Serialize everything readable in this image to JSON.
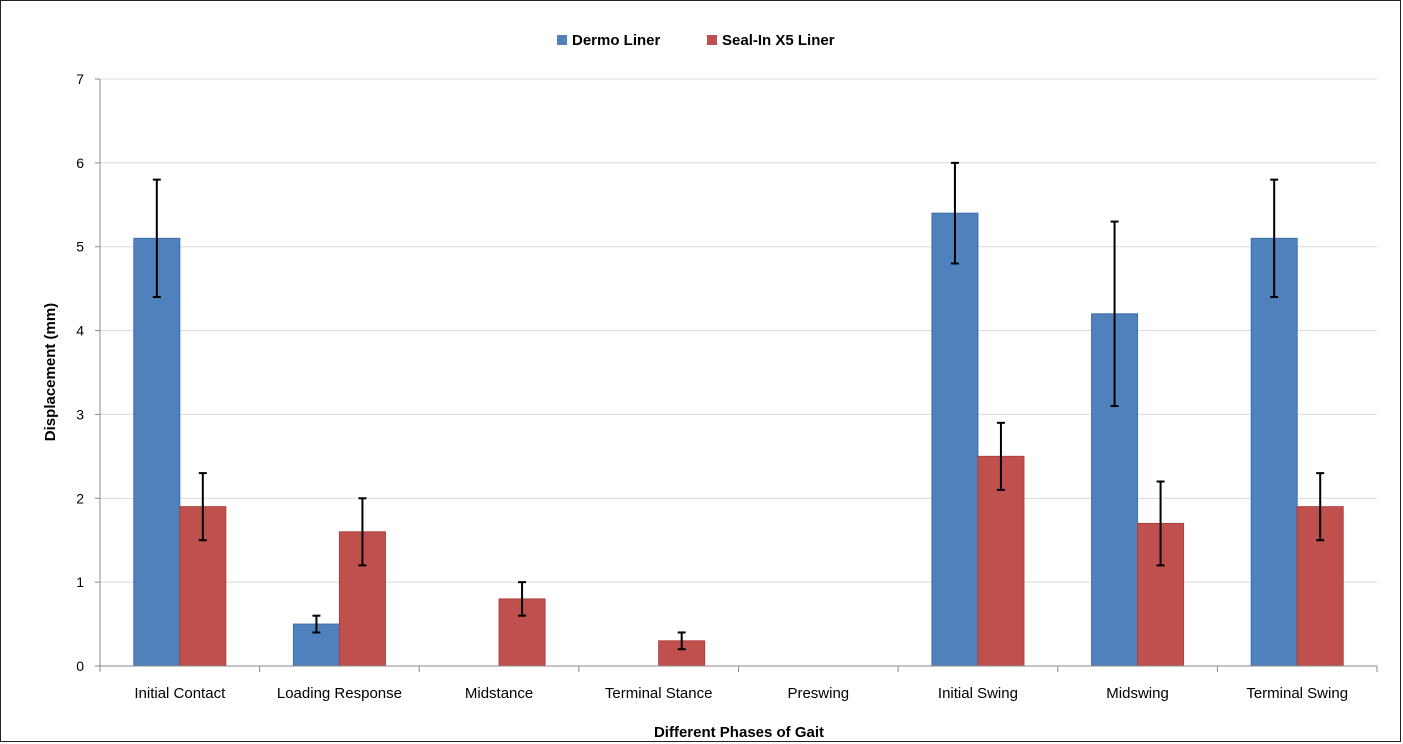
{
  "chart_data": {
    "type": "bar",
    "xlabel": "Different Phases of Gait",
    "ylabel": "Displacement (mm)",
    "ylim": [
      0,
      7
    ],
    "yticks": [
      0,
      1,
      2,
      3,
      4,
      5,
      6,
      7
    ],
    "grid": true,
    "legend_position": "top-center",
    "categories": [
      "Initial Contact",
      "Loading Response",
      "Midstance",
      "Terminal Stance",
      "Preswing",
      "Initial Swing",
      "Midswing",
      "Terminal Swing"
    ],
    "series": [
      {
        "name": "Dermo Liner",
        "color": "#4F81BD",
        "values": [
          5.1,
          0.5,
          0,
          0,
          0,
          5.4,
          4.2,
          5.1
        ],
        "error": [
          0.7,
          0.1,
          0,
          0,
          0,
          0.6,
          1.1,
          0.7
        ]
      },
      {
        "name": "Seal-In X5 Liner",
        "color": "#C0504D",
        "values": [
          1.9,
          1.6,
          0.8,
          0.3,
          0,
          2.5,
          1.7,
          1.9
        ],
        "error": [
          0.4,
          0.4,
          0.2,
          0.1,
          0,
          0.4,
          0.5,
          0.4
        ]
      }
    ]
  }
}
